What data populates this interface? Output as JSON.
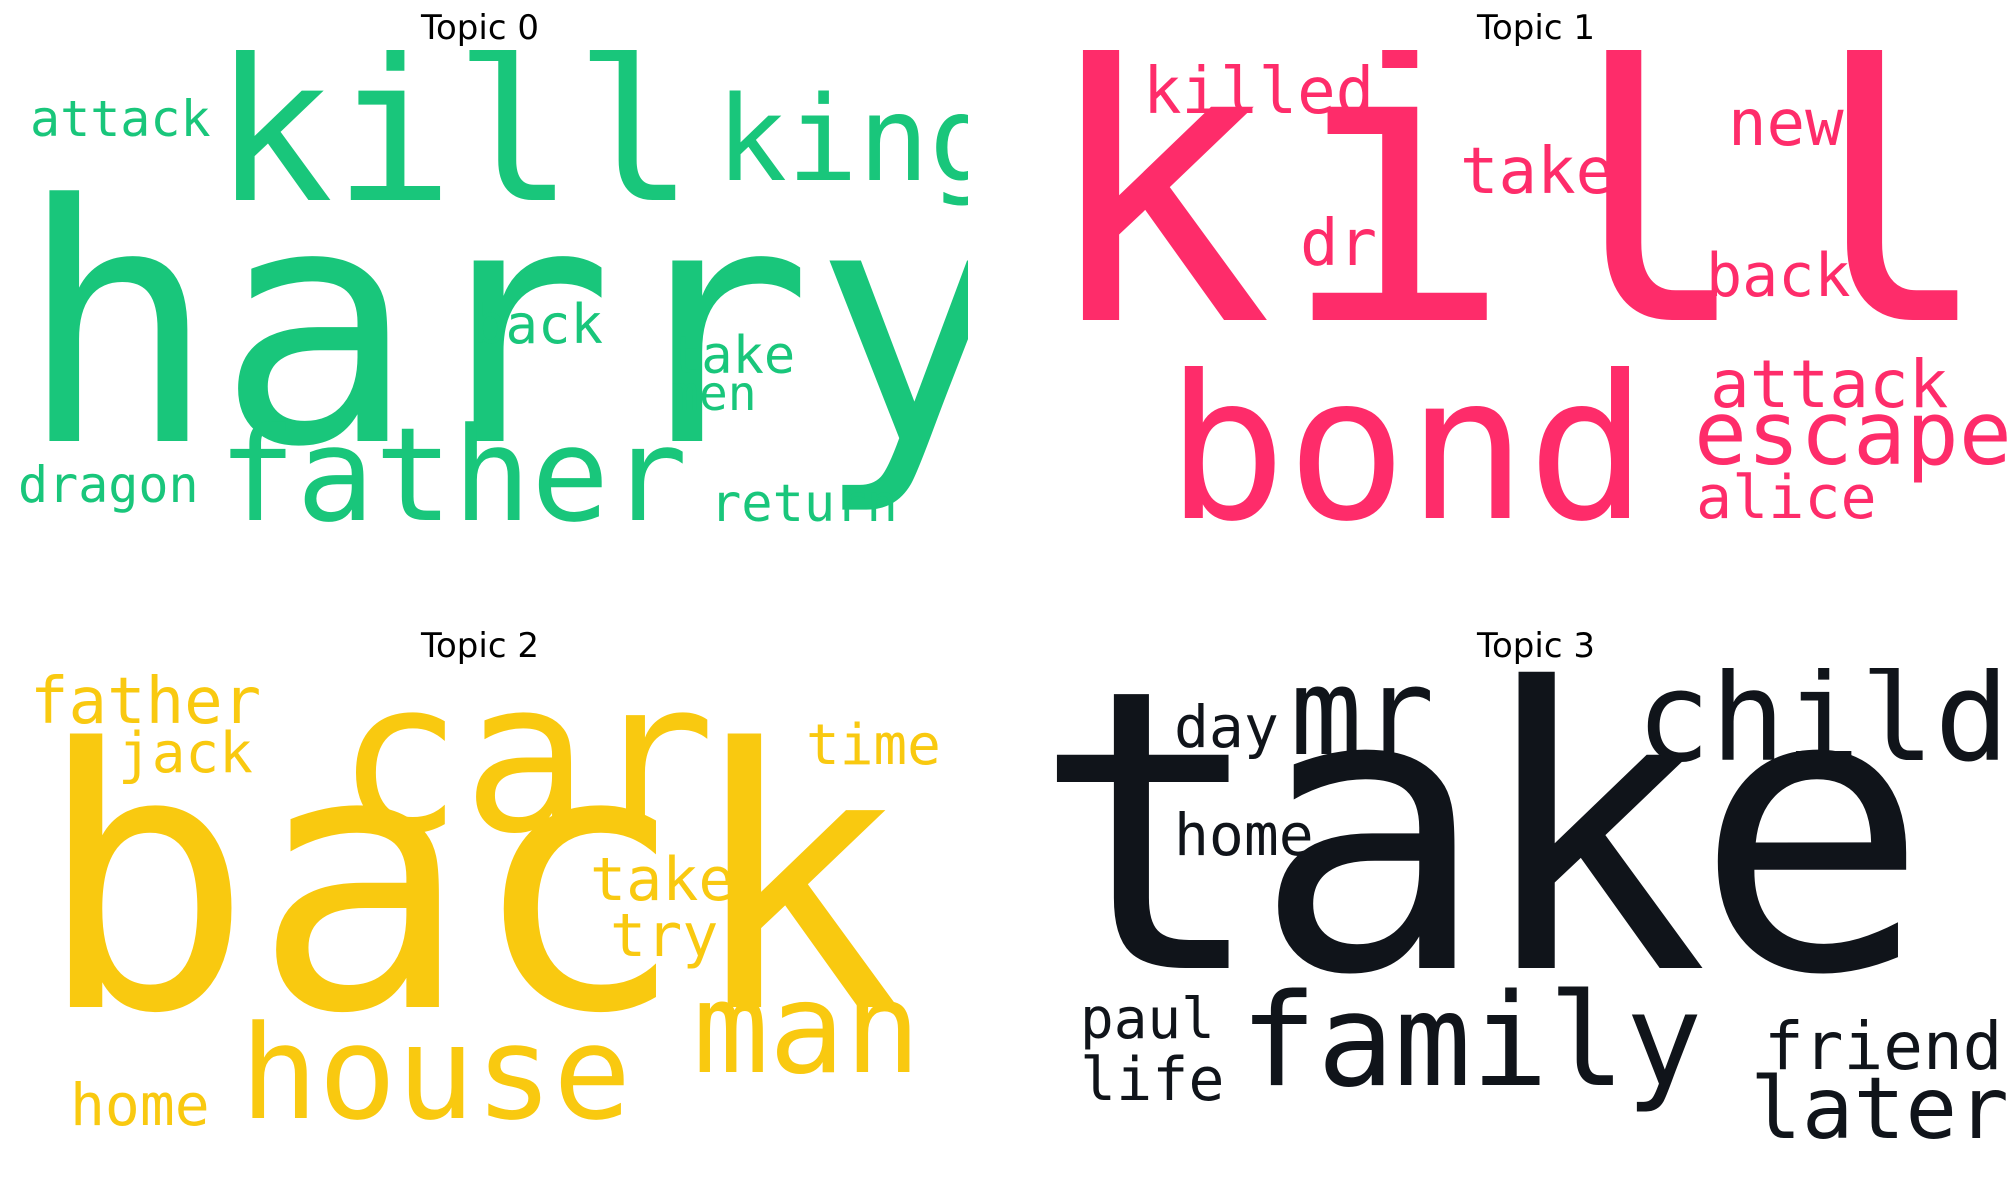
{
  "topics": [
    {
      "title": "Topic 0",
      "color": "#19c67b",
      "words": [
        "harry",
        "kill",
        "king",
        "father",
        "attack",
        "back",
        "take",
        "men",
        "dragon",
        "return"
      ]
    },
    {
      "title": "Topic 1",
      "color": "#fe2c6a",
      "words": [
        "kill",
        "bond",
        "killed",
        "new",
        "take",
        "dr",
        "back",
        "attack",
        "escape",
        "alice"
      ]
    },
    {
      "title": "Topic 2",
      "color": "#f9c910",
      "words": [
        "back",
        "car",
        "father",
        "jack",
        "time",
        "take",
        "try",
        "man",
        "house",
        "home"
      ]
    },
    {
      "title": "Topic 3",
      "color": "#10141a",
      "words": [
        "take",
        "mr",
        "child",
        "day",
        "home",
        "family",
        "paul",
        "life",
        "friend",
        "later"
      ]
    }
  ]
}
